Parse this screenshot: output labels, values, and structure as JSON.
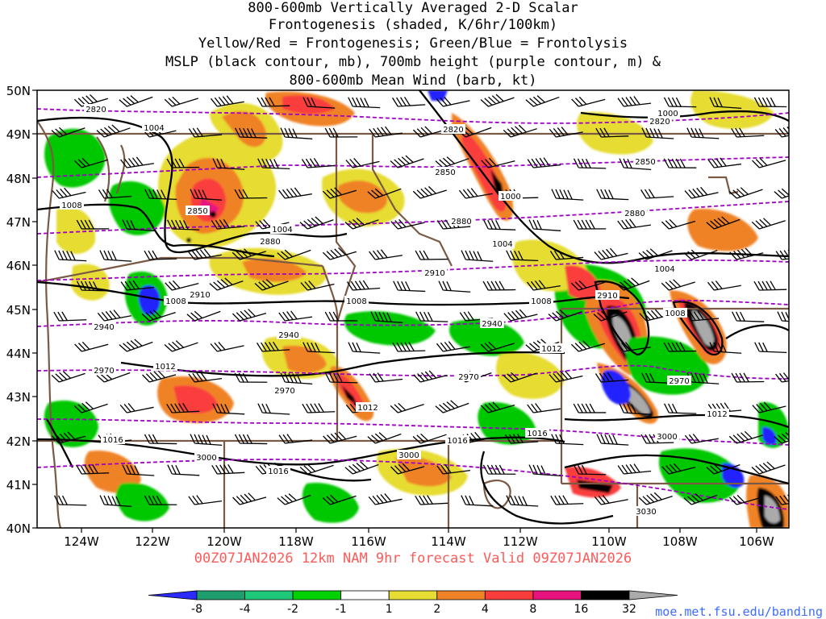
{
  "title": {
    "lines": [
      "800-600mb Vertically Averaged 2-D Scalar",
      "Frontogenesis (shaded, K/6hr/100km)",
      "Yellow/Red = Frontogenesis;  Green/Blue = Frontolysis",
      "MSLP (black contour, mb), 700mb height (purple contour, m) &",
      "800-600mb Mean Wind (barb, kt)"
    ]
  },
  "map": {
    "lat_labels": [
      "50N",
      "49N",
      "48N",
      "47N",
      "46N",
      "45N",
      "44N",
      "43N",
      "42N",
      "41N",
      "40N"
    ],
    "lon_labels": [
      "124W",
      "122W",
      "120W",
      "118W",
      "116W",
      "114W",
      "112W",
      "110W",
      "108W",
      "106W"
    ],
    "mslp_labels": [
      "1004",
      "1008",
      "1004",
      "1000",
      "1004",
      "1008",
      "1008",
      "1008",
      "1012",
      "1012",
      "1012",
      "1016",
      "1016",
      "1016",
      "1016",
      "1000",
      "1004",
      "1008",
      "1012"
    ],
    "height_labels": [
      "2820",
      "2820",
      "2850",
      "2850",
      "2850",
      "2880",
      "2880",
      "2880",
      "2910",
      "2910",
      "2910",
      "2940",
      "2940",
      "2940",
      "2970",
      "2970",
      "2970",
      "2970",
      "3000",
      "3000",
      "3000",
      "3030",
      "2820"
    ],
    "colors": {
      "frontolysis_strong": "#2424ff",
      "frontolysis": "#00c800",
      "frontogenesis_weak": "#e6dc32",
      "frontogenesis": "#f08228",
      "frontogenesis_strong": "#fa3c3c",
      "frontogenesis_max": "#000000",
      "mslp_contour": "#000000",
      "height_contour": "#a000c8",
      "border": "#7a5a44"
    }
  },
  "colorbar": {
    "ticks": [
      "-8",
      "-4",
      "-2",
      "-1",
      "1",
      "2",
      "4",
      "8",
      "16",
      "32"
    ],
    "colors": [
      "#2b2bff",
      "#1e9e6e",
      "#1fc878",
      "#00d200",
      "#ffffff",
      "#e6dc32",
      "#f08228",
      "#fa3c3c",
      "#e8127e",
      "#000000",
      "#aaaaaa"
    ]
  },
  "footer": "00Z07JAN2026 12km NAM 9hr forecast Valid 09Z07JAN2026",
  "credit": "moe.met.fsu.edu/banding"
}
